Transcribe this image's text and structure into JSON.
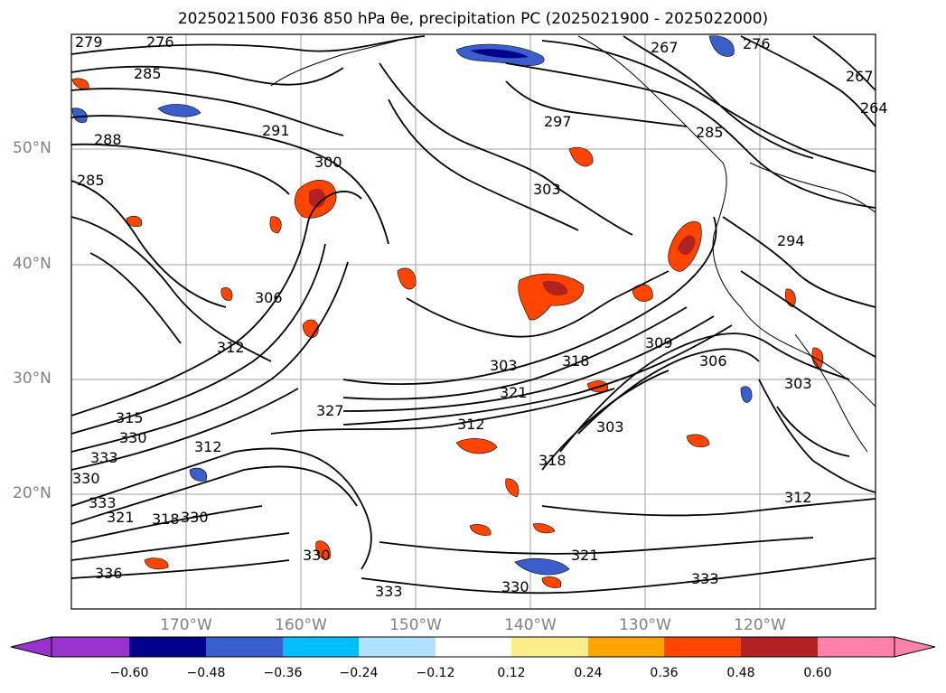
{
  "title": "2025021500 F036 850 hPa θe, precipitation PC (2025021900 - 2025022000)",
  "lat_labels": [
    "50°N",
    "40°N",
    "30°N",
    "20°N"
  ],
  "lon_labels": [
    "170°W",
    "160°W",
    "150°W",
    "140°W",
    "130°W",
    "120°W"
  ],
  "contour_labels": [
    "279",
    "276",
    "285",
    "288",
    "285",
    "291",
    "300",
    "297",
    "267",
    "276",
    "267",
    "264",
    "285",
    "306",
    "312",
    "303",
    "318",
    "309",
    "306",
    "303",
    "321",
    "327",
    "315",
    "330",
    "333",
    "330",
    "333",
    "321",
    "318",
    "330",
    "312",
    "318",
    "303",
    "312",
    "321",
    "330",
    "333",
    "333",
    "330",
    "336",
    "294",
    "303",
    "312"
  ],
  "colorbar": {
    "tick_labels": [
      "−0.60",
      "−0.48",
      "−0.36",
      "−0.24",
      "−0.12",
      "0.12",
      "0.24",
      "0.36",
      "0.48",
      "0.60"
    ],
    "colors": [
      "#9a32cd",
      "#00008b",
      "#3a5fcd",
      "#00bfff",
      "#b0e2ff",
      "#ffffff",
      "#ffec8b",
      "#ffa500",
      "#ff4500",
      "#b22222",
      "#ff82ab"
    ]
  }
}
